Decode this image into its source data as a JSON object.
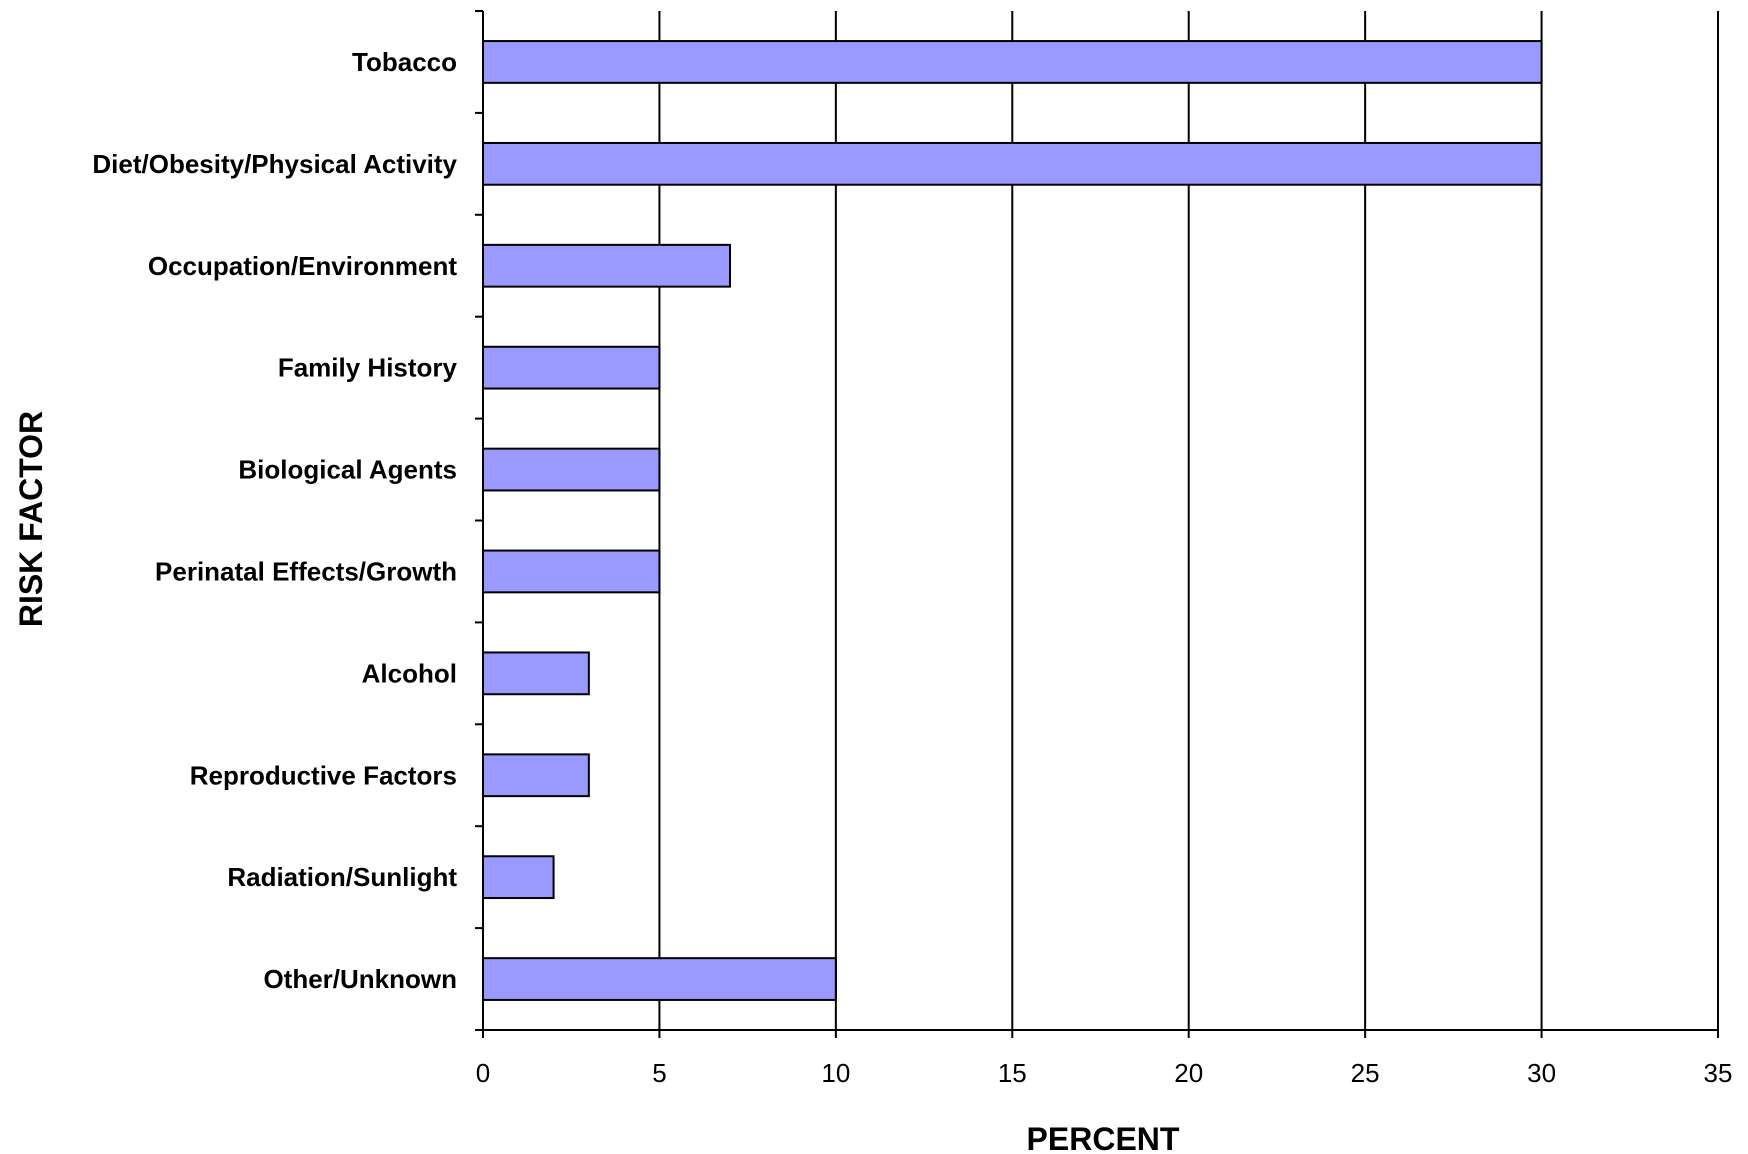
{
  "chart_data": {
    "type": "bar",
    "orientation": "horizontal",
    "categories": [
      "Tobacco",
      "Diet/Obesity/Physical Activity",
      "Occupation/Environment",
      "Family History",
      "Biological Agents",
      "Perinatal Effects/Growth",
      "Alcohol",
      "Reproductive Factors",
      "Radiation/Sunlight",
      "Other/Unknown"
    ],
    "values": [
      30,
      30,
      7,
      5,
      5,
      5,
      3,
      3,
      2,
      10
    ],
    "xlabel": "PERCENT",
    "ylabel": "RISK FACTOR",
    "xlim": [
      0,
      35
    ],
    "xticks": [
      "0",
      "5",
      "10",
      "15",
      "20",
      "25",
      "30",
      "35"
    ],
    "grid": "vertical",
    "bar_color": "#9999ff"
  }
}
